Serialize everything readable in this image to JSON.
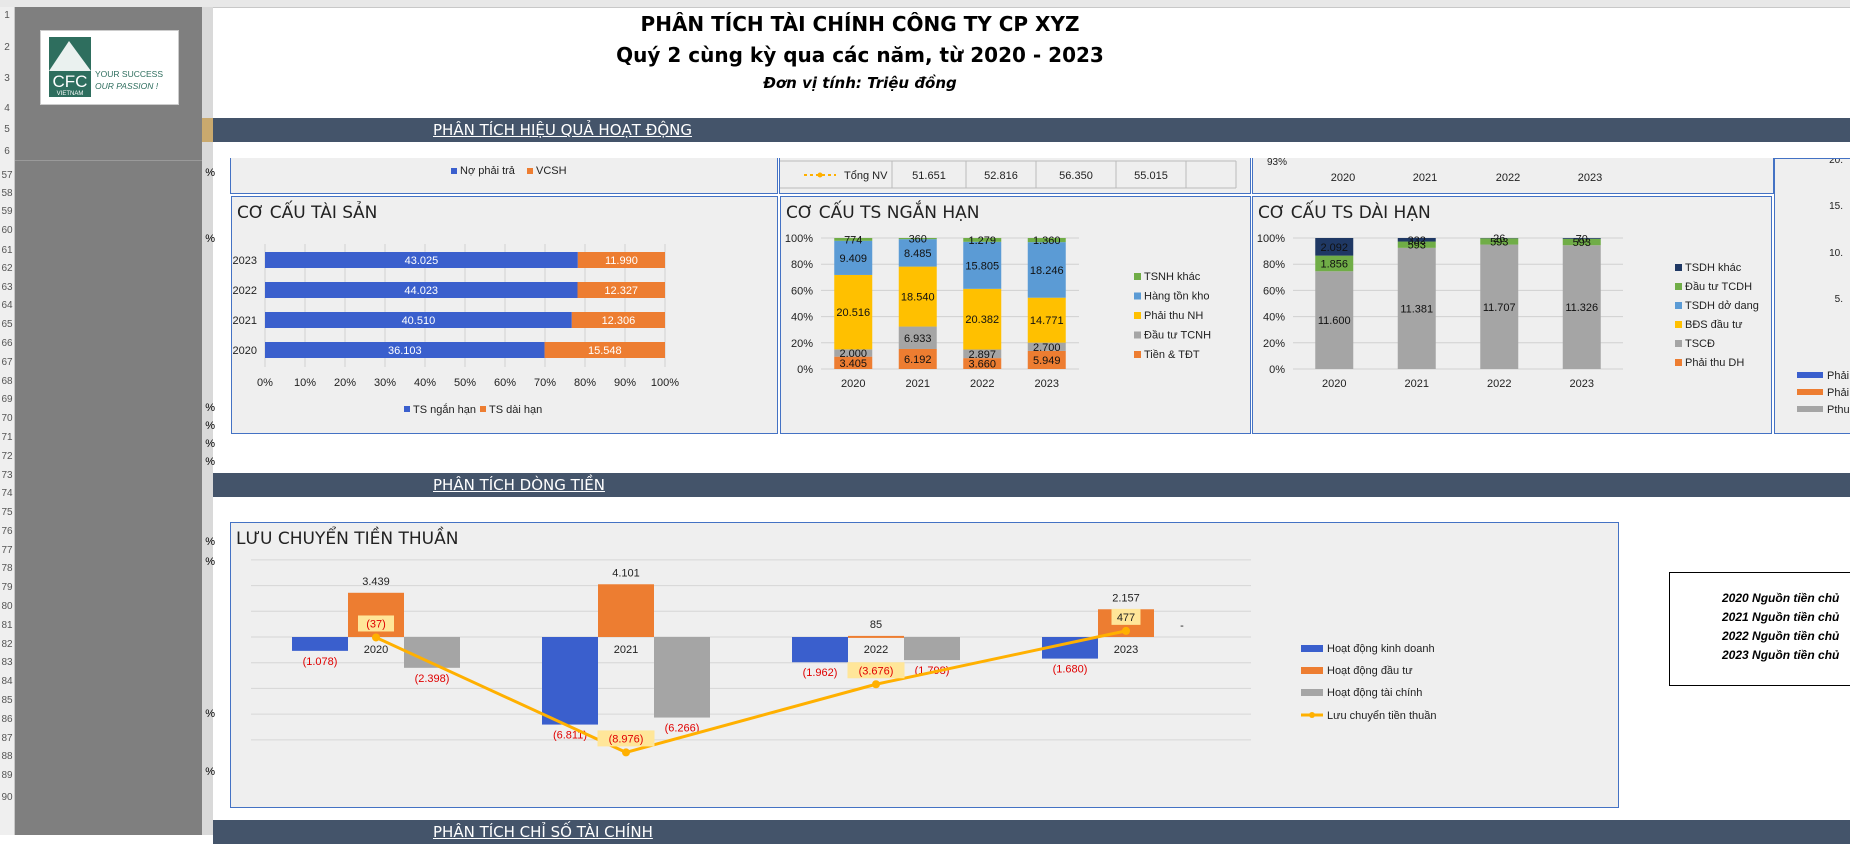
{
  "header": {
    "title": "PHÂN TÍCH TÀI CHÍNH CÔNG TY CP XYZ",
    "subtitle": "Quý 2 cùng kỳ qua các năm, từ 2020 - 2023",
    "unit": "Đơn vị tính: Triệu đồng"
  },
  "logo": {
    "line1": "YOUR SUCCESS",
    "line2": "OUR PASSION !",
    "mark": "CFC",
    "sub": "VIETNAM"
  },
  "rows": [
    "1",
    "2",
    "3",
    "4",
    "5",
    "6",
    "57",
    "58",
    "59",
    "60",
    "61",
    "62",
    "63",
    "64",
    "65",
    "66",
    "67",
    "68",
    "69",
    "70",
    "71",
    "72",
    "73",
    "74",
    "75",
    "76",
    "77",
    "78",
    "79",
    "80",
    "81",
    "82",
    "83",
    "84",
    "85",
    "86",
    "87",
    "88",
    "89",
    "90"
  ],
  "pct_sign": "%",
  "sections": {
    "operations": "PHÂN TÍCH HIỆU QUẢ HOẠT ĐỘNG",
    "cashflow": "PHÂN TÍCH DÒNG TIỀN",
    "ratios": "PHÂN TÍCH CHỈ SỐ TÀI CHÍNH"
  },
  "top_strip": {
    "legend": [
      "Nợ phải trả",
      "VCSH"
    ],
    "total_label": "Tổng NV",
    "total_values": [
      "51.651",
      "52.816",
      "56.350",
      "55.015"
    ],
    "year_labels": [
      "2020",
      "2021",
      "2022",
      "2023"
    ],
    "right_pct": "93%"
  },
  "colors": {
    "blue": "#3a5fcd",
    "orange": "#ed7d31",
    "gray": "#a5a5a5",
    "yellow": "#ffc000",
    "lightblue": "#5b9bd5",
    "green": "#70ad47",
    "navy": "#1f3864",
    "line": "#ffb000",
    "band": "#44546a",
    "negative": "#e00000"
  },
  "chart_data": [
    {
      "type": "bar",
      "title": "CƠ CẤU TÀI SẢN",
      "orientation": "horizontal",
      "stacked": "percent",
      "categories": [
        "2023",
        "2022",
        "2021",
        "2020"
      ],
      "series": [
        {
          "name": "TS ngắn hạn",
          "values": [
            43025,
            44023,
            40510,
            36103
          ],
          "labels": [
            "43.025",
            "44.023",
            "40.510",
            "36.103"
          ]
        },
        {
          "name": "TS dài hạn",
          "values": [
            11990,
            12327,
            12306,
            15548
          ],
          "labels": [
            "11.990",
            "12.327",
            "12.306",
            "15.548"
          ]
        }
      ],
      "ticks": [
        "0%",
        "10%",
        "20%",
        "30%",
        "40%",
        "50%",
        "60%",
        "70%",
        "80%",
        "90%",
        "100%"
      ],
      "legend": "bottom"
    },
    {
      "type": "bar",
      "title": "CƠ CẤU TS NGẮN HẠN",
      "stacked": "percent",
      "categories": [
        "2020",
        "2021",
        "2022",
        "2023"
      ],
      "series": [
        {
          "name": "Tiền & TĐT",
          "values": [
            3405,
            6192,
            3660,
            5949
          ],
          "labels": [
            "3.405",
            "6.192",
            "3.660",
            "5.949"
          ]
        },
        {
          "name": "Đầu tư TCNH",
          "values": [
            2000,
            6933,
            2897,
            2700
          ],
          "labels": [
            "2.000",
            "6.933",
            "2.897",
            "2.700"
          ]
        },
        {
          "name": "Phải thu NH",
          "values": [
            20516,
            18540,
            20382,
            14771
          ],
          "labels": [
            "20.516",
            "18.540",
            "20.382",
            "14.771"
          ]
        },
        {
          "name": "Hàng tồn kho",
          "values": [
            9409,
            8485,
            15805,
            18246
          ],
          "labels": [
            "9.409",
            "8.485",
            "15.805",
            "18.246"
          ]
        },
        {
          "name": "TSNH khác",
          "values": [
            774,
            360,
            1279,
            1360
          ],
          "labels": [
            "774",
            "360",
            "1.279",
            "1.360"
          ]
        }
      ],
      "ticks": [
        "0%",
        "20%",
        "40%",
        "60%",
        "80%",
        "100%"
      ],
      "legend": "right"
    },
    {
      "type": "bar",
      "title": "CƠ CẤU TS DÀI HẠN",
      "stacked": "percent",
      "categories": [
        "2020",
        "2021",
        "2022",
        "2023"
      ],
      "series": [
        {
          "name": "Phải thu DH",
          "values": [
            0,
            0,
            0,
            0
          ],
          "labels": [
            "",
            "",
            "",
            ""
          ]
        },
        {
          "name": "TSCĐ",
          "values": [
            11600,
            11381,
            11707,
            11326
          ],
          "labels": [
            "11.600",
            "11.381",
            "11.707",
            "11.326"
          ]
        },
        {
          "name": "BĐS đầu tư",
          "values": [
            0,
            0,
            0,
            0
          ],
          "labels": [
            "",
            "",
            "",
            ""
          ]
        },
        {
          "name": "TSDH dở dang",
          "values": [
            0,
            0,
            0,
            0
          ],
          "labels": [
            "",
            "",
            "",
            ""
          ]
        },
        {
          "name": "Đầu tư TCDH",
          "values": [
            1856,
            593,
            593,
            593
          ],
          "labels": [
            "1.856",
            "593",
            "593",
            "593"
          ]
        },
        {
          "name": "TSDH khác",
          "values": [
            2092,
            332,
            26,
            70
          ],
          "labels": [
            "2.092",
            "332",
            "26",
            "70"
          ]
        }
      ],
      "ticks": [
        "0%",
        "20%",
        "40%",
        "60%",
        "80%",
        "100%"
      ],
      "legend": "right"
    },
    {
      "type": "bar",
      "title": "LƯU CHUYỂN TIỀN THUẦN",
      "categories": [
        "2020",
        "2021",
        "2022",
        "2023"
      ],
      "series": [
        {
          "name": "Hoạt động kinh doanh",
          "values": [
            -1078,
            -6811,
            -1962,
            -1680
          ],
          "labels": [
            "(1.078)",
            "(6.811)",
            "(1.962)",
            "(1.680)"
          ]
        },
        {
          "name": "Hoạt động đầu tư",
          "values": [
            3439,
            4101,
            85,
            2157
          ],
          "labels": [
            "3.439",
            "4.101",
            "85",
            "2.157"
          ]
        },
        {
          "name": "Hoạt động tài chính",
          "values": [
            -2398,
            -6266,
            -1798,
            0
          ],
          "labels": [
            "(2.398)",
            "(6.266)",
            "(1.798)",
            "-"
          ]
        },
        {
          "name": "Lưu chuyển tiền thuần",
          "type": "line",
          "values": [
            -37,
            -8976,
            -3676,
            477
          ],
          "labels": [
            "(37)",
            "(8.976)",
            "(3.676)",
            "477"
          ]
        }
      ],
      "legend": "right"
    }
  ],
  "notes": {
    "items": [
      {
        "year": "2020",
        "text": "Nguồn tiền chủ"
      },
      {
        "year": "2021",
        "text": "Nguồn tiền chủ"
      },
      {
        "year": "2022",
        "text": "Nguồn tiền chủ"
      },
      {
        "year": "2023",
        "text": "Nguồn tiền chủ"
      }
    ]
  },
  "far_right_partial": {
    "ticks": [
      "20.",
      "15.",
      "10.",
      "5."
    ],
    "legend": [
      "Phải",
      "Phải",
      "Pthu"
    ]
  }
}
